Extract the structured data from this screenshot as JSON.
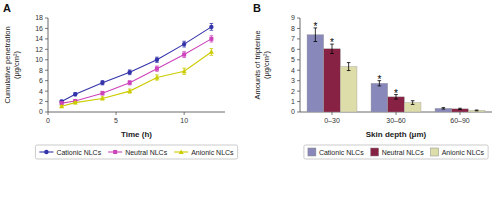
{
  "chart_data": [
    {
      "type": "line",
      "x": [
        1,
        2,
        4,
        6,
        8,
        10,
        12
      ],
      "series": [
        {
          "name": "Cationic NLCs",
          "color": "#3333aa",
          "marker": "circle",
          "values": [
            2.0,
            3.4,
            5.6,
            7.6,
            10.0,
            13.0,
            16.3
          ],
          "errors": [
            0.25,
            0.3,
            0.4,
            0.45,
            0.5,
            0.55,
            0.65
          ]
        },
        {
          "name": "Neutral NLCs",
          "color": "#cc44bb",
          "marker": "square",
          "values": [
            1.7,
            2.1,
            3.6,
            5.6,
            8.3,
            11.0,
            14.0
          ],
          "errors": [
            0.2,
            0.2,
            0.35,
            0.4,
            0.5,
            0.55,
            0.6
          ]
        },
        {
          "name": "Anionic NLCs",
          "color": "#cccc00",
          "marker": "triangle",
          "values": [
            1.1,
            1.8,
            2.6,
            4.0,
            6.6,
            7.8,
            11.5
          ],
          "errors": [
            0.15,
            0.2,
            0.3,
            0.4,
            0.5,
            0.6,
            0.65
          ]
        }
      ],
      "x_label": "Time (h)",
      "y_label": "Cumulative penetration\n(μg/cm²)",
      "xlim": [
        0,
        13
      ],
      "xticks": [
        0,
        5,
        10
      ],
      "ylim": [
        0,
        18
      ],
      "yticks": [
        0,
        2,
        4,
        6,
        8,
        10,
        12,
        14,
        16,
        18
      ],
      "grid": false,
      "legend": "bottom",
      "annotations": [
        {
          "text": "A"
        }
      ]
    },
    {
      "type": "bar",
      "categories": [
        "0–30",
        "30–60",
        "60–90"
      ],
      "series": [
        {
          "name": "Cationic NLCs",
          "color": "#8888bb",
          "values": [
            7.4,
            2.75,
            0.35
          ],
          "errors": [
            0.65,
            0.25,
            0.07
          ]
        },
        {
          "name": "Neutral NLCs",
          "color": "#882244",
          "values": [
            6.05,
            1.45,
            0.3
          ],
          "errors": [
            0.45,
            0.22,
            0.06
          ]
        },
        {
          "name": "Anionic NLCs",
          "color": "#ddddaa",
          "values": [
            4.35,
            0.9,
            0.15
          ],
          "errors": [
            0.38,
            0.18,
            0.04
          ]
        }
      ],
      "x_label": "Skin depth (μm)",
      "y_label": "Amounts of tripterine\n(μg/cm²)",
      "ylim": [
        0,
        9
      ],
      "yticks": [
        0,
        1,
        2,
        3,
        4,
        5,
        6,
        7,
        8,
        9
      ],
      "grid": false,
      "legend": "bottom",
      "annotations": [
        {
          "text": "B"
        },
        {
          "text": "*",
          "x": "0–30",
          "series": "Cationic NLCs",
          "y": 8.15
        },
        {
          "text": "*",
          "x": "30–60",
          "series": "Cationic NLCs",
          "y": 3.05
        },
        {
          "text": "*",
          "x": "0–30",
          "series": "Neutral NLCs",
          "y": 6.6
        },
        {
          "text": "*",
          "x": "30–60",
          "series": "Neutral NLCs",
          "y": 1.72
        }
      ]
    }
  ]
}
